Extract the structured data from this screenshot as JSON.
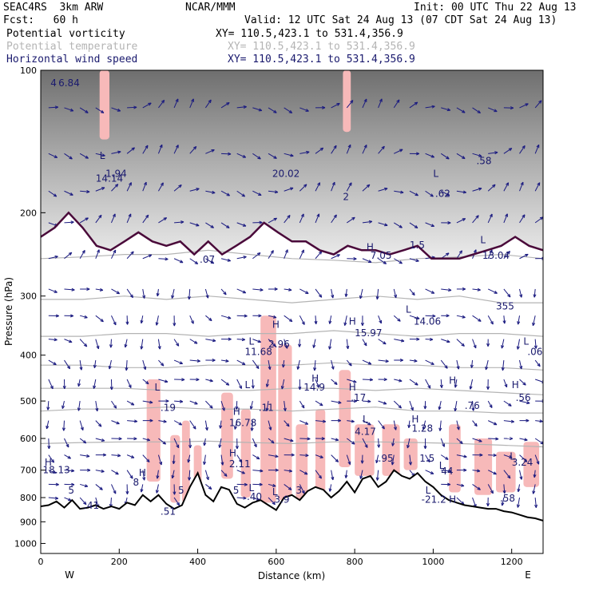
{
  "header": {
    "model": "SEAC4RS  3km ARW",
    "org": "NCAR/MMM",
    "init": "Init: 00 UTC Thu 22 Aug 13",
    "fcst": "Fcst:   60 h",
    "valid": "Valid: 12 UTC Sat 24 Aug 13 (07 CDT Sat 24 Aug 13)"
  },
  "fields": [
    {
      "label": "Potential vorticity",
      "xy": "XY= 110.5,423.1 to 531.4,356.9",
      "color": "#000000"
    },
    {
      "label": "Potential temperature",
      "xy": "XY= 110.5,423.1 to 531.4,356.9",
      "color": "#b4b4b4"
    },
    {
      "label": "Horizontal wind speed",
      "xy": "XY= 110.5,423.1 to 531.4,356.9",
      "color": "#1a1a6e"
    }
  ],
  "colors": {
    "pv_contour": "#4a0a3a",
    "theta": "#b4b4b4",
    "wind": "#1a1a80",
    "shade": "#f7b9b9",
    "terrain": "#000000"
  },
  "chart_data": {
    "type": "cross-section",
    "xlabel": "Distance (km)",
    "ylabel": "Pressure (hPa)",
    "xlim": [
      0,
      1280
    ],
    "ylim": [
      1050,
      100
    ],
    "y_log_scale": true,
    "x_ticks": [
      "0",
      "200",
      "400",
      "600",
      "800",
      "1000",
      "1200"
    ],
    "y_ticks": [
      "100",
      "200",
      "300",
      "400",
      "500",
      "600",
      "700",
      "800",
      "900",
      "1000"
    ],
    "x_end_labels": {
      "left": "W",
      "right": "E"
    },
    "terrain_surface": {
      "x": [
        0,
        20,
        40,
        60,
        80,
        100,
        120,
        140,
        160,
        180,
        200,
        220,
        240,
        260,
        280,
        300,
        320,
        340,
        360,
        380,
        400,
        420,
        440,
        460,
        480,
        500,
        520,
        540,
        560,
        580,
        600,
        620,
        640,
        660,
        680,
        700,
        720,
        740,
        760,
        780,
        800,
        820,
        840,
        860,
        880,
        900,
        920,
        940,
        960,
        980,
        1000,
        1020,
        1040,
        1060,
        1080,
        1100,
        1120,
        1140,
        1160,
        1180,
        1200,
        1220,
        1240,
        1260,
        1280
      ],
      "p": [
        835,
        830,
        815,
        840,
        810,
        845,
        840,
        830,
        845,
        835,
        845,
        820,
        830,
        790,
        815,
        790,
        825,
        845,
        830,
        760,
        710,
        790,
        815,
        760,
        770,
        825,
        840,
        820,
        810,
        830,
        850,
        800,
        790,
        810,
        775,
        760,
        770,
        800,
        775,
        740,
        780,
        730,
        720,
        760,
        740,
        700,
        720,
        730,
        710,
        740,
        760,
        790,
        810,
        820,
        830,
        835,
        840,
        845,
        845,
        855,
        860,
        870,
        880,
        885,
        895
      ]
    },
    "theta_contours": [
      {
        "label": "355",
        "p": [
          250,
          248,
          245,
          245,
          240,
          245,
          250,
          252,
          255,
          250,
          248,
          245,
          250
        ]
      },
      {
        "label": "",
        "p": [
          305,
          305,
          300,
          305,
          300,
          305,
          310,
          305,
          300,
          305,
          300,
          310,
          310
        ]
      },
      {
        "label": "",
        "p": [
          365,
          365,
          360,
          360,
          365,
          360,
          360,
          355,
          360,
          365,
          360,
          360,
          365
        ]
      },
      {
        "label": "",
        "p": [
          420,
          420,
          425,
          425,
          420,
          420,
          420,
          415,
          420,
          420,
          425,
          425,
          430
        ]
      },
      {
        "label": "",
        "p": [
          470,
          470,
          470,
          475,
          475,
          475,
          470,
          470,
          475,
          470,
          475,
          480,
          485
        ]
      },
      {
        "label": "",
        "p": [
          525,
          520,
          520,
          515,
          520,
          520,
          525,
          520,
          515,
          525,
          525,
          530,
          530
        ]
      },
      {
        "label": "",
        "p": [
          615,
          612,
          610,
          610,
          608,
          612,
          615,
          610,
          610,
          612,
          615,
          620,
          625
        ]
      }
    ],
    "tropopause_pv": [
      225,
      215,
      200,
      215,
      235,
      240,
      230,
      220,
      230,
      235,
      230,
      245,
      230,
      245,
      235,
      225,
      210,
      220,
      230,
      230,
      240,
      245,
      235,
      240,
      240,
      245,
      240,
      235,
      250,
      250,
      250,
      245,
      240,
      235,
      225,
      235,
      240
    ],
    "shaded_regions": [
      {
        "x": [
          270,
          305
        ],
        "p": [
          450,
          740
        ]
      },
      {
        "x": [
          330,
          355
        ],
        "p": [
          590,
          820
        ]
      },
      {
        "x": [
          360,
          380
        ],
        "p": [
          550,
          820
        ]
      },
      {
        "x": [
          390,
          410
        ],
        "p": [
          620,
          800
        ]
      },
      {
        "x": [
          460,
          490
        ],
        "p": [
          480,
          730
        ]
      },
      {
        "x": [
          510,
          535
        ],
        "p": [
          520,
          800
        ]
      },
      {
        "x": [
          560,
          600
        ],
        "p": [
          330,
          820
        ]
      },
      {
        "x": [
          605,
          640
        ],
        "p": [
          380,
          810
        ]
      },
      {
        "x": [
          650,
          680
        ],
        "p": [
          560,
          810
        ]
      },
      {
        "x": [
          700,
          725
        ],
        "p": [
          520,
          800
        ]
      },
      {
        "x": [
          760,
          790
        ],
        "p": [
          430,
          690
        ]
      },
      {
        "x": [
          800,
          850
        ],
        "p": [
          560,
          720
        ]
      },
      {
        "x": [
          870,
          915
        ],
        "p": [
          560,
          720
        ]
      },
      {
        "x": [
          925,
          960
        ],
        "p": [
          600,
          700
        ]
      },
      {
        "x": [
          1040,
          1070
        ],
        "p": [
          560,
          780
        ]
      },
      {
        "x": [
          1105,
          1150
        ],
        "p": [
          600,
          790
        ]
      },
      {
        "x": [
          1160,
          1210
        ],
        "p": [
          640,
          780
        ]
      },
      {
        "x": [
          1230,
          1270
        ],
        "p": [
          610,
          760
        ]
      },
      {
        "x": [
          150,
          175
        ],
        "p": [
          100,
          140
        ]
      },
      {
        "x": [
          770,
          790
        ],
        "p": [
          100,
          135
        ]
      }
    ],
    "annotations": [
      {
        "x": 25,
        "p": 108,
        "text": "4"
      },
      {
        "x": 45,
        "p": 108,
        "text": "6.84"
      },
      {
        "x": 150,
        "p": 154,
        "text": "L"
      },
      {
        "x": 140,
        "p": 172,
        "text": "14.14"
      },
      {
        "x": 165,
        "p": 168,
        "text": "1.94"
      },
      {
        "x": 590,
        "p": 168,
        "text": "20.02"
      },
      {
        "x": 770,
        "p": 188,
        "text": "2"
      },
      {
        "x": 1000,
        "p": 168,
        "text": "L"
      },
      {
        "x": 1005,
        "p": 185,
        "text": ".62"
      },
      {
        "x": 1110,
        "p": 158,
        "text": ".58"
      },
      {
        "x": 405,
        "p": 255,
        "text": ".07"
      },
      {
        "x": 830,
        "p": 240,
        "text": "H"
      },
      {
        "x": 840,
        "p": 250,
        "text": "7.05"
      },
      {
        "x": 940,
        "p": 238,
        "text": "1.5"
      },
      {
        "x": 1120,
        "p": 232,
        "text": "L"
      },
      {
        "x": 1125,
        "p": 250,
        "text": "13.04"
      },
      {
        "x": 1160,
        "p": 320,
        "text": "355"
      },
      {
        "x": 590,
        "p": 350,
        "text": "H"
      },
      {
        "x": 580,
        "p": 385,
        "text": "2.96"
      },
      {
        "x": 530,
        "p": 380,
        "text": "L"
      },
      {
        "x": 520,
        "p": 400,
        "text": "11.68"
      },
      {
        "x": 785,
        "p": 345,
        "text": "H"
      },
      {
        "x": 800,
        "p": 365,
        "text": "15.97"
      },
      {
        "x": 930,
        "p": 325,
        "text": "L"
      },
      {
        "x": 950,
        "p": 345,
        "text": "14.06"
      },
      {
        "x": 1230,
        "p": 380,
        "text": "L"
      },
      {
        "x": 1240,
        "p": 400,
        "text": ".06"
      },
      {
        "x": 690,
        "p": 455,
        "text": "H"
      },
      {
        "x": 670,
        "p": 475,
        "text": "14.9"
      },
      {
        "x": 785,
        "p": 475,
        "text": "H"
      },
      {
        "x": 790,
        "p": 500,
        "text": ".17"
      },
      {
        "x": 1040,
        "p": 460,
        "text": "H"
      },
      {
        "x": 1080,
        "p": 520,
        "text": ".76"
      },
      {
        "x": 1200,
        "p": 470,
        "text": "H"
      },
      {
        "x": 1210,
        "p": 500,
        "text": ".56"
      },
      {
        "x": 290,
        "p": 475,
        "text": "L"
      },
      {
        "x": 305,
        "p": 525,
        "text": ".19"
      },
      {
        "x": 520,
        "p": 470,
        "text": "L"
      },
      {
        "x": 555,
        "p": 525,
        "text": ".11"
      },
      {
        "x": 490,
        "p": 535,
        "text": "H"
      },
      {
        "x": 480,
        "p": 565,
        "text": "16.78"
      },
      {
        "x": 820,
        "p": 555,
        "text": "L"
      },
      {
        "x": 800,
        "p": 590,
        "text": "4.17"
      },
      {
        "x": 945,
        "p": 555,
        "text": "H"
      },
      {
        "x": 945,
        "p": 580,
        "text": "1.28"
      },
      {
        "x": 480,
        "p": 655,
        "text": "H"
      },
      {
        "x": 480,
        "p": 690,
        "text": "2.11"
      },
      {
        "x": 860,
        "p": 672,
        "text": ".95"
      },
      {
        "x": 965,
        "p": 672,
        "text": "1.5"
      },
      {
        "x": 10,
        "p": 685,
        "text": "H"
      },
      {
        "x": 5,
        "p": 710,
        "text": "18.13"
      },
      {
        "x": 1195,
        "p": 665,
        "text": "L"
      },
      {
        "x": 1200,
        "p": 685,
        "text": "3.24"
      },
      {
        "x": 1015,
        "p": 695,
        "text": "L"
      },
      {
        "x": 1020,
        "p": 715,
        "text": "44"
      },
      {
        "x": 250,
        "p": 720,
        "text": "H"
      },
      {
        "x": 235,
        "p": 755,
        "text": "8"
      },
      {
        "x": 350,
        "p": 785,
        "text": "5"
      },
      {
        "x": 490,
        "p": 785,
        "text": "5"
      },
      {
        "x": 530,
        "p": 775,
        "text": "L"
      },
      {
        "x": 525,
        "p": 810,
        "text": ".40"
      },
      {
        "x": 590,
        "p": 790,
        "text": "L"
      },
      {
        "x": 595,
        "p": 820,
        "text": "3.9"
      },
      {
        "x": 650,
        "p": 785,
        "text": "3"
      },
      {
        "x": 70,
        "p": 785,
        "text": "5"
      },
      {
        "x": 110,
        "p": 845,
        "text": ".41"
      },
      {
        "x": 305,
        "p": 870,
        "text": ".51"
      },
      {
        "x": 980,
        "p": 785,
        "text": "L"
      },
      {
        "x": 970,
        "p": 820,
        "text": "-21.2"
      },
      {
        "x": 1040,
        "p": 820,
        "text": "H"
      },
      {
        "x": 1170,
        "p": 815,
        "text": ".58"
      }
    ]
  }
}
